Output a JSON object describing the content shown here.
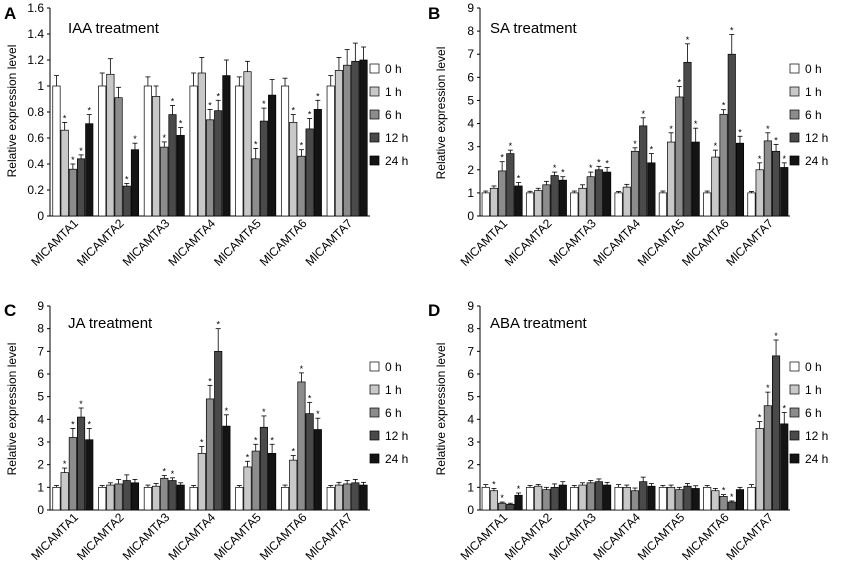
{
  "legend": {
    "labels": [
      "0 h",
      "1 h",
      "6 h",
      "12 h",
      "24 h"
    ],
    "colors": [
      "#ffffff",
      "#c8c8c8",
      "#8c8c8c",
      "#4a4a4a",
      "#141414"
    ]
  },
  "significance_mark": "*",
  "chart_data": [
    {
      "type": "bar",
      "panel": "A",
      "title": "IAA treatment",
      "ylabel": "Relative expression level",
      "ylim": [
        0,
        1.6
      ],
      "yticks": [
        "0",
        "0.2",
        "0.4",
        "0.6",
        "0.8",
        "1",
        "1.2",
        "1.4",
        "1.6"
      ],
      "tick_step": 0.2,
      "categories": [
        "MlCAMTA1",
        "MlCAMTA2",
        "MlCAMTA3",
        "MlCAMTA4",
        "MlCAMTA5",
        "MlCAMTA6",
        "MlCAMTA7"
      ],
      "series": [
        {
          "name": "0 h",
          "values": [
            1.0,
            1.0,
            1.0,
            1.0,
            1.0,
            1.0,
            1.0
          ],
          "errors": [
            0.08,
            0.1,
            0.07,
            0.1,
            0.07,
            0.06,
            0.08
          ],
          "sig": [
            false,
            false,
            false,
            false,
            false,
            false,
            false
          ]
        },
        {
          "name": "1 h",
          "values": [
            0.66,
            1.09,
            0.92,
            1.1,
            1.11,
            0.72,
            1.12
          ],
          "errors": [
            0.06,
            0.12,
            0.08,
            0.12,
            0.08,
            0.06,
            0.1
          ],
          "sig": [
            true,
            false,
            false,
            false,
            false,
            true,
            false
          ]
        },
        {
          "name": "6 h",
          "values": [
            0.36,
            0.91,
            0.53,
            0.74,
            0.44,
            0.46,
            1.16
          ],
          "errors": [
            0.04,
            0.08,
            0.04,
            0.08,
            0.08,
            0.05,
            0.12
          ],
          "sig": [
            true,
            false,
            true,
            true,
            true,
            true,
            false
          ]
        },
        {
          "name": "12 h",
          "values": [
            0.44,
            0.23,
            0.78,
            0.81,
            0.73,
            0.67,
            1.19
          ],
          "errors": [
            0.03,
            0.02,
            0.07,
            0.08,
            0.1,
            0.08,
            0.14
          ],
          "sig": [
            true,
            true,
            true,
            true,
            true,
            true,
            false
          ]
        },
        {
          "name": "24 h",
          "values": [
            0.71,
            0.51,
            0.62,
            1.08,
            0.93,
            0.82,
            1.2
          ],
          "errors": [
            0.07,
            0.05,
            0.06,
            0.12,
            0.12,
            0.07,
            0.1
          ],
          "sig": [
            true,
            true,
            true,
            false,
            false,
            true,
            false
          ]
        }
      ]
    },
    {
      "type": "bar",
      "panel": "B",
      "title": "SA treatment",
      "ylabel": "Relative expression level",
      "ylim": [
        0,
        9
      ],
      "yticks": [
        "0",
        "1",
        "2",
        "3",
        "4",
        "5",
        "6",
        "7",
        "8",
        "9"
      ],
      "tick_step": 1,
      "categories": [
        "MlCAMTA1",
        "MlCAMTA2",
        "MlCAMTA3",
        "MlCAMTA4",
        "MlCAMTA5",
        "MlCAMTA6",
        "MlCAMTA7"
      ],
      "series": [
        {
          "name": "0 h",
          "values": [
            1.0,
            1.0,
            1.0,
            1.0,
            1.0,
            1.0,
            1.0
          ],
          "errors": [
            0.08,
            0.07,
            0.08,
            0.06,
            0.08,
            0.08,
            0.06
          ],
          "sig": [
            false,
            false,
            false,
            false,
            false,
            false,
            false
          ]
        },
        {
          "name": "1 h",
          "values": [
            1.2,
            1.1,
            1.2,
            1.25,
            3.2,
            2.55,
            2.0
          ],
          "errors": [
            0.1,
            0.1,
            0.15,
            0.12,
            0.4,
            0.3,
            0.3
          ],
          "sig": [
            false,
            false,
            false,
            false,
            true,
            true,
            true
          ]
        },
        {
          "name": "6 h",
          "values": [
            1.95,
            1.35,
            1.7,
            2.8,
            5.15,
            4.4,
            3.25
          ],
          "errors": [
            0.4,
            0.15,
            0.2,
            0.15,
            0.45,
            0.2,
            0.35
          ],
          "sig": [
            true,
            false,
            true,
            true,
            true,
            true,
            true
          ]
        },
        {
          "name": "12 h",
          "values": [
            2.7,
            1.75,
            2.0,
            3.9,
            6.65,
            7.0,
            2.8
          ],
          "errors": [
            0.15,
            0.15,
            0.15,
            0.35,
            0.8,
            0.85,
            0.3
          ],
          "sig": [
            true,
            true,
            true,
            true,
            true,
            true,
            true
          ]
        },
        {
          "name": "24 h",
          "values": [
            1.3,
            1.55,
            1.9,
            2.3,
            3.2,
            3.15,
            2.1
          ],
          "errors": [
            0.15,
            0.15,
            0.2,
            0.4,
            0.6,
            0.3,
            0.2
          ],
          "sig": [
            true,
            true,
            true,
            true,
            true,
            true,
            true
          ]
        }
      ]
    },
    {
      "type": "bar",
      "panel": "C",
      "title": "JA treatment",
      "ylabel": "Relative expression level",
      "ylim": [
        0,
        9
      ],
      "yticks": [
        "0",
        "1",
        "2",
        "3",
        "4",
        "5",
        "6",
        "7",
        "8",
        "9"
      ],
      "tick_step": 1,
      "categories": [
        "MlCAMTA1",
        "MlCAMTA2",
        "MlCAMTA3",
        "MlCAMTA4",
        "MlCAMTA5",
        "MlCAMTA6",
        "MlCAMTA7"
      ],
      "series": [
        {
          "name": "0 h",
          "values": [
            1.0,
            1.0,
            1.0,
            1.0,
            1.0,
            1.0,
            1.0
          ],
          "errors": [
            0.08,
            0.08,
            0.1,
            0.08,
            0.08,
            0.1,
            0.08
          ],
          "sig": [
            false,
            false,
            false,
            false,
            false,
            false,
            false
          ]
        },
        {
          "name": "1 h",
          "values": [
            1.65,
            1.1,
            1.05,
            2.5,
            1.9,
            2.2,
            1.1
          ],
          "errors": [
            0.2,
            0.1,
            0.12,
            0.3,
            0.25,
            0.2,
            0.12
          ],
          "sig": [
            true,
            false,
            false,
            true,
            true,
            true,
            false
          ]
        },
        {
          "name": "6 h",
          "values": [
            3.2,
            1.15,
            1.4,
            4.9,
            2.6,
            5.65,
            1.15
          ],
          "errors": [
            0.4,
            0.2,
            0.12,
            0.6,
            0.3,
            0.4,
            0.15
          ],
          "sig": [
            true,
            false,
            true,
            true,
            true,
            true,
            false
          ]
        },
        {
          "name": "12 h",
          "values": [
            4.1,
            1.3,
            1.3,
            7.0,
            3.65,
            4.25,
            1.2
          ],
          "errors": [
            0.4,
            0.25,
            0.12,
            1.0,
            0.5,
            0.5,
            0.15
          ],
          "sig": [
            true,
            false,
            true,
            true,
            true,
            true,
            false
          ]
        },
        {
          "name": "24 h",
          "values": [
            3.1,
            1.2,
            1.1,
            3.7,
            2.5,
            3.55,
            1.1
          ],
          "errors": [
            0.5,
            0.15,
            0.1,
            0.5,
            0.4,
            0.5,
            0.12
          ],
          "sig": [
            true,
            false,
            false,
            true,
            true,
            true,
            false
          ]
        }
      ]
    },
    {
      "type": "bar",
      "panel": "D",
      "title": "ABA treatment",
      "ylabel": "Relative expression level",
      "ylim": [
        0,
        9
      ],
      "yticks": [
        "0",
        "1",
        "2",
        "3",
        "4",
        "5",
        "6",
        "7",
        "8",
        "9"
      ],
      "tick_step": 1,
      "categories": [
        "MlCAMTA1",
        "MlCAMTA2",
        "MlCAMTA3",
        "MlCAMTA4",
        "MlCAMTA5",
        "MlCAMTA6",
        "MlCAMTA7"
      ],
      "series": [
        {
          "name": "0 h",
          "values": [
            1.0,
            1.0,
            1.0,
            1.0,
            1.0,
            1.0,
            1.0
          ],
          "errors": [
            0.12,
            0.08,
            0.08,
            0.12,
            0.08,
            0.08,
            0.12
          ],
          "sig": [
            false,
            false,
            false,
            false,
            false,
            false,
            false
          ]
        },
        {
          "name": "1 h",
          "values": [
            0.85,
            1.05,
            1.1,
            1.0,
            1.0,
            0.85,
            3.6
          ],
          "errors": [
            0.1,
            0.08,
            0.1,
            0.1,
            0.1,
            0.1,
            0.3
          ],
          "sig": [
            true,
            false,
            false,
            false,
            false,
            false,
            true
          ]
        },
        {
          "name": "6 h",
          "values": [
            0.3,
            0.9,
            1.2,
            0.85,
            0.9,
            0.6,
            4.6
          ],
          "errors": [
            0.05,
            0.1,
            0.1,
            0.12,
            0.1,
            0.08,
            0.6
          ],
          "sig": [
            true,
            false,
            false,
            false,
            false,
            true,
            true
          ]
        },
        {
          "name": "12 h",
          "values": [
            0.25,
            1.0,
            1.25,
            1.25,
            1.05,
            0.35,
            6.8
          ],
          "errors": [
            0.05,
            0.15,
            0.12,
            0.2,
            0.12,
            0.05,
            0.7
          ],
          "sig": [
            false,
            false,
            false,
            false,
            false,
            true,
            true
          ]
        },
        {
          "name": "24 h",
          "values": [
            0.65,
            1.1,
            1.1,
            1.05,
            0.95,
            0.9,
            3.8
          ],
          "errors": [
            0.1,
            0.15,
            0.12,
            0.12,
            0.12,
            0.1,
            0.5
          ],
          "sig": [
            true,
            false,
            false,
            false,
            false,
            false,
            true
          ]
        }
      ]
    }
  ]
}
